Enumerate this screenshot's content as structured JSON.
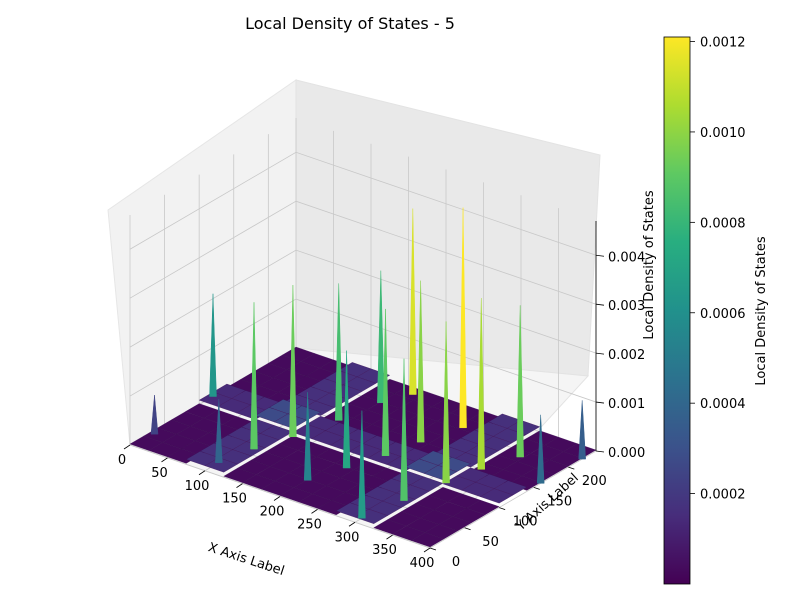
{
  "chart_data": {
    "type": "surface3d",
    "title": "Local Density of States - 5",
    "xlabel": "X Axis Label",
    "ylabel": "Y Axis Label",
    "zlabel": "Local Density of States",
    "xlim": [
      0,
      400
    ],
    "ylim": [
      0,
      240
    ],
    "zlim": [
      0,
      0.0047
    ],
    "x_ticks": [
      "0",
      "50",
      "100",
      "150",
      "200",
      "250",
      "300",
      "350",
      "400"
    ],
    "y_ticks": [
      "0",
      "50",
      "100",
      "150",
      "200"
    ],
    "z_ticks": [
      "0.000",
      "0.001",
      "0.002",
      "0.003",
      "0.004"
    ],
    "colorbar": {
      "label": "Local Density of States",
      "colormap": "viridis",
      "range": [
        0.0,
        0.00121
      ],
      "ticks": [
        "0.0002",
        "0.0004",
        "0.0006",
        "0.0008",
        "0.0010",
        "0.0012"
      ]
    },
    "surface": {
      "grid_x": 400,
      "grid_y": 240,
      "background_density": 2e-05,
      "peaks": [
        {
          "x": 0,
          "y": 120,
          "z": 0.0021
        },
        {
          "x": 5,
          "y": 30,
          "z": 0.0008
        },
        {
          "x": 100,
          "y": 20,
          "z": 0.0013
        },
        {
          "x": 110,
          "y": 60,
          "z": 0.003
        },
        {
          "x": 125,
          "y": 100,
          "z": 0.0031
        },
        {
          "x": 140,
          "y": 150,
          "z": 0.0028
        },
        {
          "x": 150,
          "y": 200,
          "z": 0.0027
        },
        {
          "x": 165,
          "y": 230,
          "z": 0.0038
        },
        {
          "x": 200,
          "y": 40,
          "z": 0.0018
        },
        {
          "x": 215,
          "y": 80,
          "z": 0.0024
        },
        {
          "x": 230,
          "y": 120,
          "z": 0.003
        },
        {
          "x": 240,
          "y": 160,
          "z": 0.0033
        },
        {
          "x": 255,
          "y": 205,
          "z": 0.0045
        },
        {
          "x": 300,
          "y": 10,
          "z": 0.0022
        },
        {
          "x": 310,
          "y": 60,
          "z": 0.0029
        },
        {
          "x": 320,
          "y": 110,
          "z": 0.0033
        },
        {
          "x": 330,
          "y": 150,
          "z": 0.0035
        },
        {
          "x": 345,
          "y": 190,
          "z": 0.0031
        },
        {
          "x": 400,
          "y": 160,
          "z": 0.0014
        },
        {
          "x": 400,
          "y": 220,
          "z": 0.0012
        }
      ]
    }
  }
}
